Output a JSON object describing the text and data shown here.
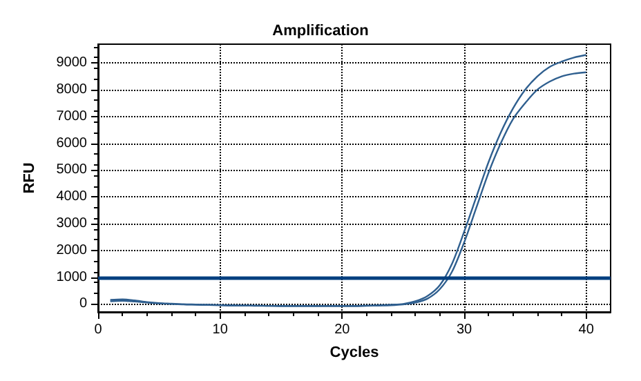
{
  "chart_data": {
    "type": "line",
    "title": "Amplification",
    "xlabel": "Cycles",
    "ylabel": "RFU",
    "x": [
      1,
      2,
      3,
      4,
      5,
      6,
      7,
      8,
      9,
      10,
      11,
      12,
      13,
      14,
      15,
      16,
      17,
      18,
      19,
      20,
      21,
      22,
      23,
      24,
      25,
      26,
      27,
      28,
      29,
      30,
      31,
      32,
      33,
      34,
      35,
      36,
      37,
      38,
      39,
      40
    ],
    "series": [
      {
        "color": "#2f5f8f",
        "values": [
          150,
          170,
          130,
          70,
          30,
          10,
          -10,
          -20,
          -30,
          -40,
          -50,
          -60,
          -60,
          -70,
          -70,
          -70,
          -70,
          -70,
          -70,
          -70,
          -70,
          -60,
          -50,
          -30,
          0,
          100,
          300,
          700,
          1500,
          2700,
          4000,
          5300,
          6400,
          7300,
          8000,
          8500,
          8850,
          9050,
          9200,
          9300
        ]
      },
      {
        "color": "#2f5f8f",
        "values": [
          100,
          120,
          90,
          50,
          20,
          0,
          -20,
          -30,
          -40,
          -50,
          -60,
          -60,
          -70,
          -70,
          -80,
          -80,
          -80,
          -80,
          -80,
          -80,
          -80,
          -70,
          -60,
          -50,
          -20,
          50,
          200,
          550,
          1200,
          2300,
          3600,
          4900,
          6000,
          6900,
          7500,
          8000,
          8300,
          8500,
          8600,
          8650
        ]
      }
    ],
    "ref_lines": [
      {
        "axis": "y",
        "value": 1000,
        "color": "#003f7f"
      }
    ],
    "xlim": [
      0,
      42
    ],
    "xticks": [
      0,
      10,
      20,
      30,
      40
    ],
    "ylim": [
      -300,
      9700
    ],
    "yticks": [
      0,
      1000,
      2000,
      3000,
      4000,
      5000,
      6000,
      7000,
      8000,
      9000
    ],
    "grid": true,
    "line_style": "solid",
    "marker": "none"
  }
}
